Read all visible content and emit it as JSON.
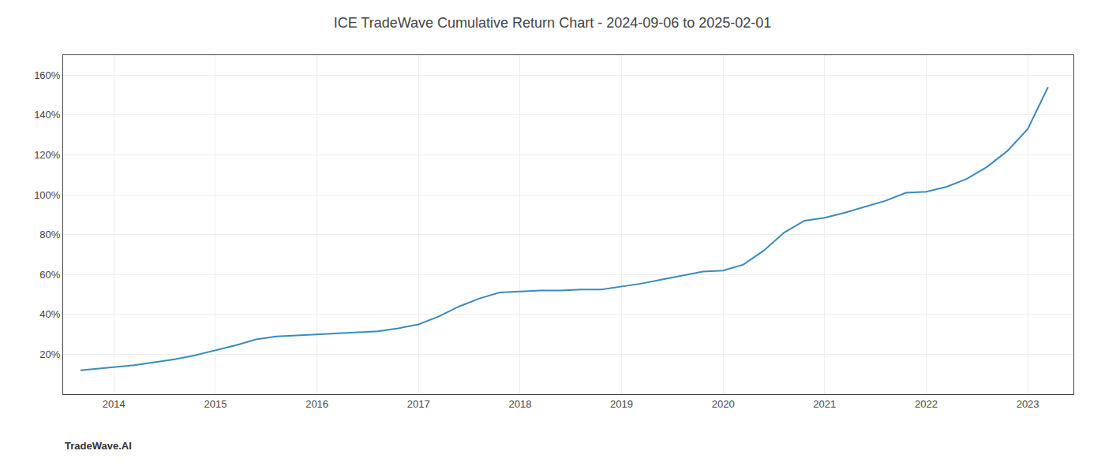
{
  "chart_data": {
    "type": "line",
    "title": "ICE TradeWave Cumulative Return Chart - 2024-09-06 to 2025-02-01",
    "annotations": [
      "TradeWave.AI"
    ],
    "x": [
      2013.67,
      2014.0,
      2014.2,
      2014.4,
      2014.6,
      2014.8,
      2015.0,
      2015.2,
      2015.4,
      2015.6,
      2015.8,
      2016.0,
      2016.2,
      2016.4,
      2016.6,
      2016.8,
      2017.0,
      2017.2,
      2017.4,
      2017.6,
      2017.8,
      2018.0,
      2018.2,
      2018.4,
      2018.6,
      2018.8,
      2019.0,
      2019.2,
      2019.4,
      2019.6,
      2019.8,
      2020.0,
      2020.2,
      2020.4,
      2020.6,
      2020.8,
      2021.0,
      2021.2,
      2021.4,
      2021.6,
      2021.8,
      2022.0,
      2022.2,
      2022.4,
      2022.6,
      2022.8,
      2023.0,
      2023.2
    ],
    "values": [
      12.0,
      13.5,
      14.5,
      16.0,
      17.5,
      19.5,
      22.0,
      24.5,
      27.5,
      29.0,
      29.5,
      30.0,
      30.5,
      31.0,
      31.5,
      33.0,
      35.0,
      39.0,
      44.0,
      48.0,
      51.0,
      51.5,
      52.0,
      52.0,
      52.5,
      52.5,
      54.0,
      55.5,
      57.5,
      59.5,
      61.5,
      62.0,
      65.0,
      72.0,
      81.0,
      87.0,
      88.5,
      91.0,
      94.0,
      97.0,
      101.0,
      101.5,
      104.0,
      108.0,
      114.0,
      122.0,
      133.0,
      154.0
    ],
    "color": "#3a8bbf",
    "xlim": [
      2013.5,
      2023.45
    ],
    "xticks": [
      2014,
      2015,
      2016,
      2017,
      2018,
      2019,
      2020,
      2021,
      2022,
      2023
    ],
    "ylim": [
      0,
      170
    ],
    "yticks": [
      {
        "value": 20,
        "label": "20%"
      },
      {
        "value": 40,
        "label": "40%"
      },
      {
        "value": 60,
        "label": "60%"
      },
      {
        "value": 80,
        "label": "80%"
      },
      {
        "value": 100,
        "label": "100%"
      },
      {
        "value": 120,
        "label": "120%"
      },
      {
        "value": 140,
        "label": "140%"
      },
      {
        "value": 160,
        "label": "160%"
      }
    ],
    "grid": true
  }
}
